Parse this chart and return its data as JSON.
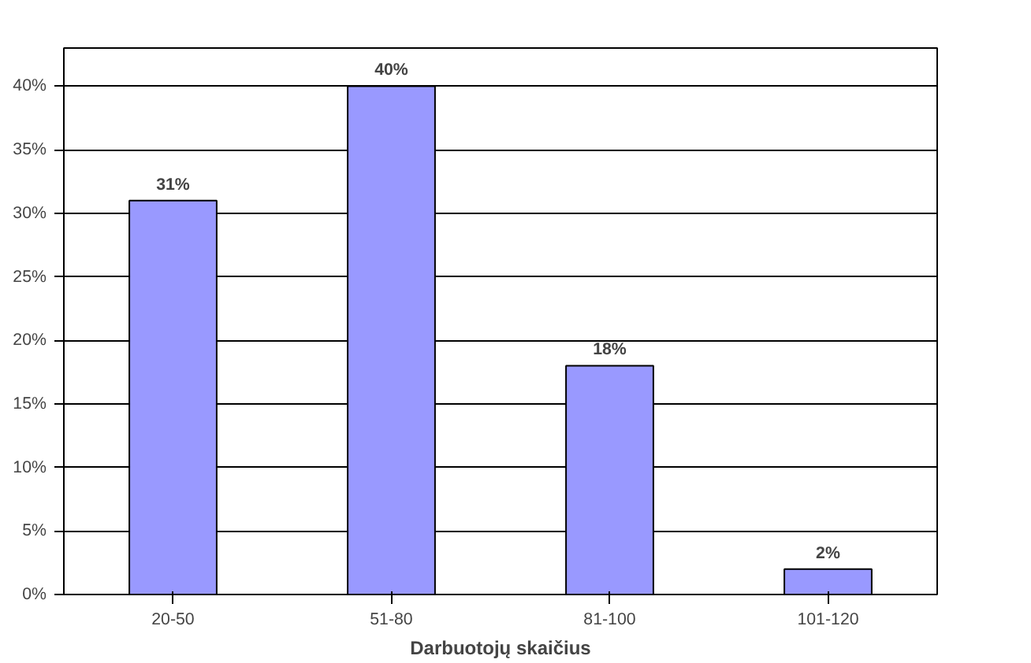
{
  "chart_data": {
    "type": "bar",
    "xlabel": "Darbuotojų skaičius",
    "categories": [
      "20-50",
      "51-80",
      "81-100",
      "101-120"
    ],
    "values": [
      31,
      40,
      18,
      2
    ],
    "color": "#9999ff",
    "value_labels": [
      "31%",
      "40%",
      "18%",
      "2%"
    ],
    "ylim": [
      0,
      43
    ],
    "yticks": [
      {
        "value": 0,
        "label": "0%"
      },
      {
        "value": 5,
        "label": "5%"
      },
      {
        "value": 10,
        "label": "10%"
      },
      {
        "value": 15,
        "label": "15%"
      },
      {
        "value": 20,
        "label": "20%"
      },
      {
        "value": 25,
        "label": "25%"
      },
      {
        "value": 30,
        "label": "30%"
      },
      {
        "value": 35,
        "label": "35%"
      },
      {
        "value": 40,
        "label": "40%"
      }
    ],
    "grid": "y"
  }
}
